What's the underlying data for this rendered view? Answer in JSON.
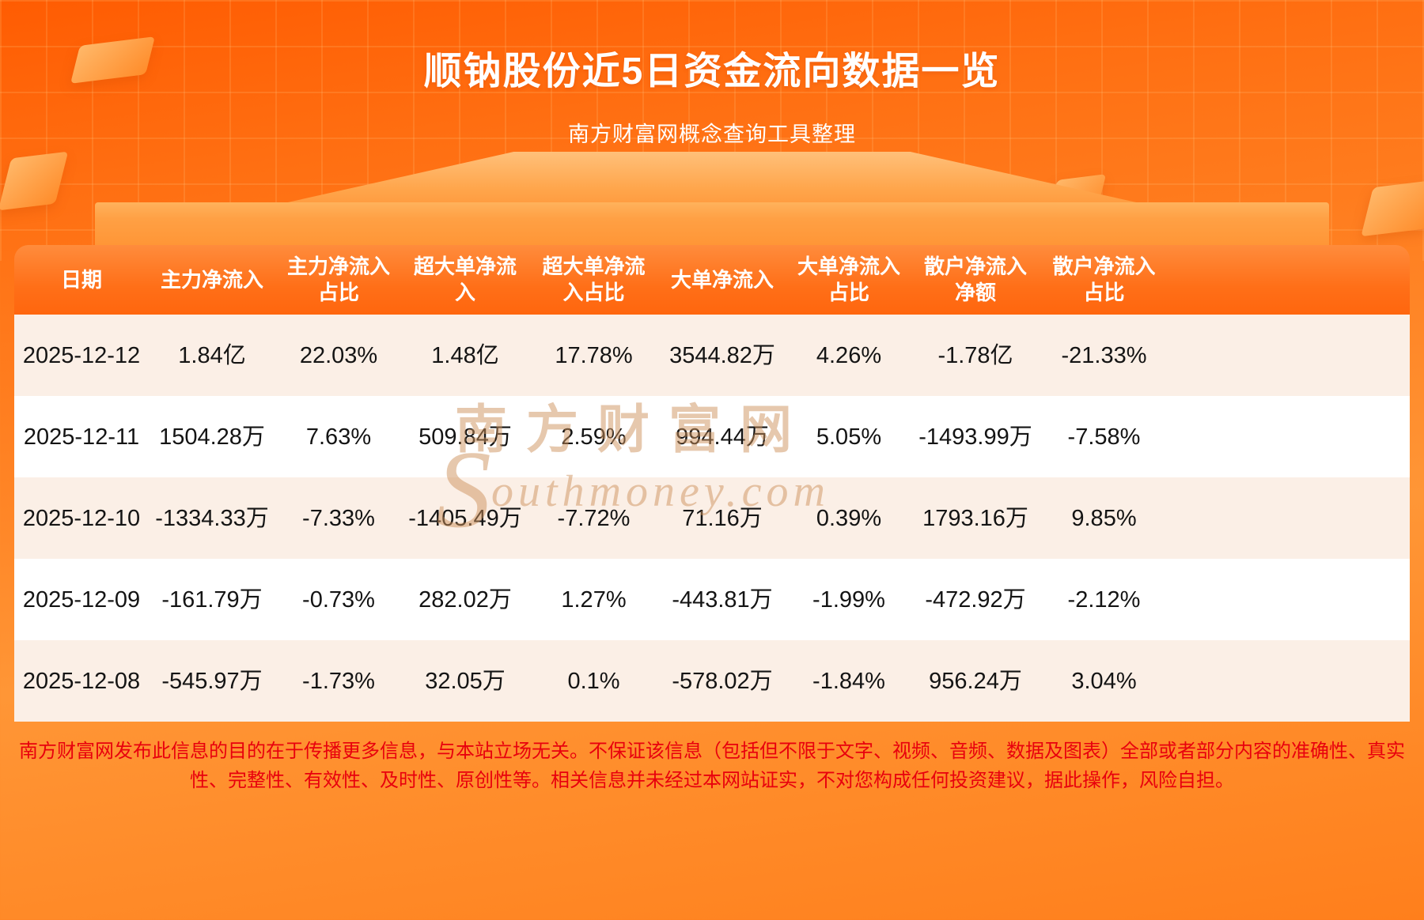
{
  "colors": {
    "background_orange": "#ff8526",
    "header_band_top": "#ff8c3c",
    "header_band_bottom": "#ff660e",
    "row_alt": "#fbefe6",
    "row_white": "#ffffff",
    "title_text": "#ffffff",
    "footer_text": "#e8000d",
    "watermark": "rgba(206,146,92,0.5)"
  },
  "header": {
    "title": "顺钠股份近5日资金流向数据一览",
    "subtitle": "南方财富网概念查询工具整理"
  },
  "table": {
    "headers": [
      [
        "日期"
      ],
      [
        "主力净流入"
      ],
      [
        "主力净流入",
        "占比"
      ],
      [
        "超大单净流",
        "入"
      ],
      [
        "超大单净流",
        "入占比"
      ],
      [
        "大单净流入"
      ],
      [
        "大单净流入",
        "占比"
      ],
      [
        "散户净流入",
        "净额"
      ],
      [
        "散户净流入",
        "占比"
      ]
    ],
    "rows": [
      [
        "2025-12-12",
        "1.84亿",
        "22.03%",
        "1.48亿",
        "17.78%",
        "3544.82万",
        "4.26%",
        "-1.78亿",
        "-21.33%"
      ],
      [
        "2025-12-11",
        "1504.28万",
        "7.63%",
        "509.84万",
        "2.59%",
        "994.44万",
        "5.05%",
        "-1493.99万",
        "-7.58%"
      ],
      [
        "2025-12-10",
        "-1334.33万",
        "-7.33%",
        "-1405.49万",
        "-7.72%",
        "71.16万",
        "0.39%",
        "1793.16万",
        "9.85%"
      ],
      [
        "2025-12-09",
        "-161.79万",
        "-0.73%",
        "282.02万",
        "1.27%",
        "-443.81万",
        "-1.99%",
        "-472.92万",
        "-2.12%"
      ],
      [
        "2025-12-08",
        "-545.97万",
        "-1.73%",
        "32.05万",
        "0.1%",
        "-578.02万",
        "-1.84%",
        "956.24万",
        "3.04%"
      ]
    ]
  },
  "watermark": {
    "cn": "南方财富网",
    "en_initial": "S",
    "en_rest": "outhmoney.com"
  },
  "footer": {
    "disclaimer": "南方财富网发布此信息的目的在于传播更多信息，与本站立场无关。不保证该信息（包括但不限于文字、视频、音频、数据及图表）全部或者部分内容的准确性、真实性、完整性、有效性、及时性、原创性等。相关信息并未经过本网站证实，不对您构成任何投资建议，据此操作，风险自担。"
  },
  "chart_data": {
    "type": "table",
    "title": "顺钠股份近5日资金流向数据一览",
    "subtitle": "南方财富网概念查询工具整理",
    "columns": [
      "日期",
      "主力净流入",
      "主力净流入占比",
      "超大单净流入",
      "超大单净流入占比",
      "大单净流入",
      "大单净流入占比",
      "散户净流入净额",
      "散户净流入占比"
    ],
    "rows": [
      [
        "2025-12-12",
        "1.84亿",
        "22.03%",
        "1.48亿",
        "17.78%",
        "3544.82万",
        "4.26%",
        "-1.78亿",
        "-21.33%"
      ],
      [
        "2025-12-11",
        "1504.28万",
        "7.63%",
        "509.84万",
        "2.59%",
        "994.44万",
        "5.05%",
        "-1493.99万",
        "-7.58%"
      ],
      [
        "2025-12-10",
        "-1334.33万",
        "-7.33%",
        "-1405.49万",
        "-7.72%",
        "71.16万",
        "0.39%",
        "1793.16万",
        "9.85%"
      ],
      [
        "2025-12-09",
        "-161.79万",
        "-0.73%",
        "282.02万",
        "1.27%",
        "-443.81万",
        "-1.99%",
        "-472.92万",
        "-2.12%"
      ],
      [
        "2025-12-08",
        "-545.97万",
        "-1.73%",
        "32.05万",
        "0.1%",
        "-578.02万",
        "-1.84%",
        "956.24万",
        "3.04%"
      ]
    ]
  }
}
